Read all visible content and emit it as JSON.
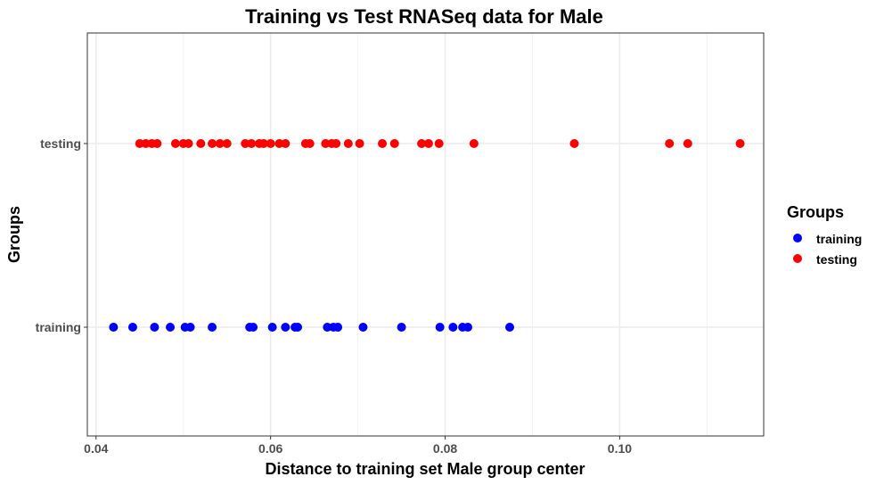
{
  "chart_data": {
    "type": "scatter",
    "title": "Training vs Test RNASeq data for Male",
    "xlabel": "Distance to training set Male group center",
    "ylabel": "Groups",
    "xlim": [
      0.039,
      0.1165
    ],
    "x_ticks": [
      0.04,
      0.06,
      0.08,
      0.1
    ],
    "x_tick_labels": [
      "0.04",
      "0.06",
      "0.08",
      "0.10"
    ],
    "categories": [
      "training",
      "testing"
    ],
    "grid": true,
    "legend": {
      "title": "Groups",
      "position": "right"
    },
    "series": [
      {
        "name": "training",
        "category": "training",
        "color": "#0000ff",
        "x": [
          0.042,
          0.0442,
          0.0467,
          0.0485,
          0.0502,
          0.0508,
          0.0533,
          0.0576,
          0.058,
          0.0602,
          0.0617,
          0.0628,
          0.0631,
          0.0665,
          0.0672,
          0.0677,
          0.0706,
          0.075,
          0.0794,
          0.0809,
          0.082,
          0.0826,
          0.0874
        ]
      },
      {
        "name": "testing",
        "category": "testing",
        "color": "#ff0000",
        "x": [
          0.045,
          0.0457,
          0.0464,
          0.047,
          0.0491,
          0.05,
          0.0506,
          0.052,
          0.0533,
          0.0542,
          0.055,
          0.0571,
          0.0578,
          0.0587,
          0.0592,
          0.06,
          0.061,
          0.0617,
          0.064,
          0.0645,
          0.0663,
          0.067,
          0.0675,
          0.0689,
          0.0702,
          0.0728,
          0.0742,
          0.0773,
          0.0781,
          0.0793,
          0.0833,
          0.0948,
          0.1057,
          0.1078,
          0.1138
        ]
      }
    ]
  }
}
